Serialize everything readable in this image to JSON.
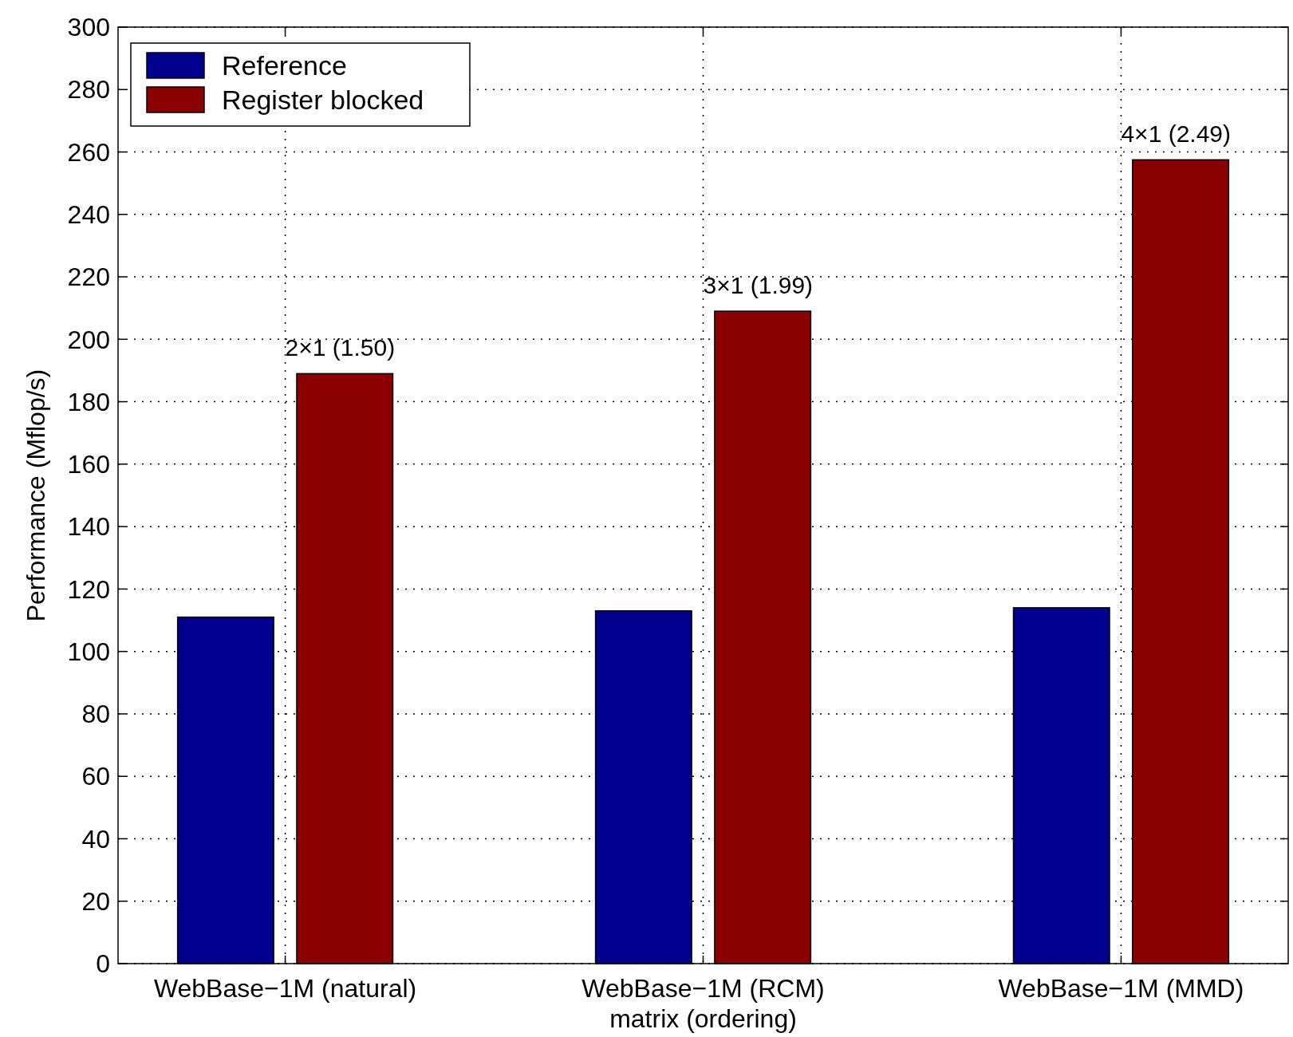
{
  "chart_data": {
    "type": "bar",
    "xlabel": "matrix (ordering)",
    "ylabel": "Performance (Mflop/s)",
    "categories": [
      "WebBase−1M (natural)",
      "WebBase−1M (RCM)",
      "WebBase−1M (MMD)"
    ],
    "series": [
      {
        "name": "Reference",
        "color": "#000090",
        "values": [
          111,
          113,
          114
        ]
      },
      {
        "name": "Register blocked",
        "color": "#8b0000",
        "values": [
          189,
          209,
          257.5
        ]
      }
    ],
    "ylim": [
      0,
      300
    ],
    "yticks": [
      0,
      20,
      40,
      60,
      80,
      100,
      120,
      140,
      160,
      180,
      200,
      220,
      240,
      260,
      280,
      300
    ],
    "grid": true,
    "legend": "top left",
    "annotations": [
      "2×1  (1.50)",
      "3×1  (1.99)",
      "4×1  (2.49)"
    ]
  }
}
